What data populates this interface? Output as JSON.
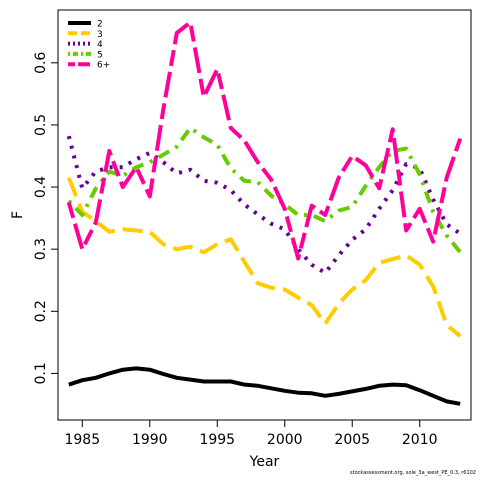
{
  "chart_data": {
    "type": "line",
    "title": "",
    "xlabel": "Year",
    "ylabel": "F",
    "xlim": [
      1983.2,
      2013.8
    ],
    "ylim": [
      0.025,
      0.685
    ],
    "xticks": [
      1985,
      1990,
      1995,
      2000,
      2005,
      2010
    ],
    "yticks": [
      0.1,
      0.2,
      0.3,
      0.4,
      0.5,
      0.6
    ],
    "ytick_labels": [
      "0.1",
      "0.2",
      "0.3",
      "0.4",
      "0.5",
      "0.6"
    ],
    "grid": false,
    "legend_position": "top-left",
    "x": [
      1984,
      1985,
      1986,
      1987,
      1988,
      1989,
      1990,
      1991,
      1992,
      1993,
      1994,
      1995,
      1996,
      1997,
      1998,
      1999,
      2000,
      2001,
      2002,
      2003,
      2004,
      2005,
      2006,
      2007,
      2008,
      2009,
      2010,
      2011,
      2012,
      2013
    ],
    "series": [
      {
        "name": "2",
        "color": "#000000",
        "dash": "solid",
        "values": [
          0.082,
          0.089,
          0.093,
          0.1,
          0.106,
          0.108,
          0.106,
          0.099,
          0.093,
          0.09,
          0.087,
          0.087,
          0.087,
          0.082,
          0.08,
          0.076,
          0.072,
          0.069,
          0.068,
          0.064,
          0.067,
          0.071,
          0.075,
          0.08,
          0.082,
          0.081,
          0.073,
          0.064,
          0.055,
          0.051
        ]
      },
      {
        "name": "3",
        "color": "#ffcc00",
        "dash": "longdash",
        "values": [
          0.415,
          0.36,
          0.345,
          0.328,
          0.332,
          0.33,
          0.328,
          0.308,
          0.3,
          0.304,
          0.295,
          0.308,
          0.316,
          0.28,
          0.245,
          0.238,
          0.235,
          0.222,
          0.21,
          0.18,
          0.212,
          0.235,
          0.25,
          0.278,
          0.284,
          0.29,
          0.275,
          0.24,
          0.178,
          0.16
        ]
      },
      {
        "name": "4",
        "color": "#660099",
        "dash": "dotted",
        "values": [
          0.482,
          0.398,
          0.425,
          0.432,
          0.432,
          0.445,
          0.455,
          0.44,
          0.422,
          0.428,
          0.41,
          0.407,
          0.395,
          0.372,
          0.356,
          0.341,
          0.332,
          0.3,
          0.275,
          0.262,
          0.29,
          0.315,
          0.332,
          0.365,
          0.395,
          0.437,
          0.43,
          0.38,
          0.34,
          0.325
        ]
      },
      {
        "name": "5",
        "color": "#66cc00",
        "dash": "dotdash",
        "values": [
          0.378,
          0.355,
          0.398,
          0.425,
          0.418,
          0.432,
          0.44,
          0.452,
          0.465,
          0.495,
          0.48,
          0.468,
          0.43,
          0.41,
          0.408,
          0.386,
          0.372,
          0.355,
          0.355,
          0.345,
          0.362,
          0.368,
          0.402,
          0.432,
          0.458,
          0.462,
          0.42,
          0.36,
          0.322,
          0.295
        ]
      },
      {
        "name": "6+",
        "color": "#ff0099",
        "dash": "twodash",
        "values": [
          0.375,
          0.3,
          0.343,
          0.458,
          0.4,
          0.432,
          0.385,
          0.525,
          0.648,
          0.665,
          0.545,
          0.59,
          0.495,
          0.475,
          0.44,
          0.412,
          0.365,
          0.285,
          0.37,
          0.355,
          0.415,
          0.45,
          0.435,
          0.398,
          0.493,
          0.33,
          0.365,
          0.312,
          0.415,
          0.478
        ]
      }
    ],
    "footer_text": "stockassessment.org, sole_3a_west_PE_0.3, r6102"
  }
}
